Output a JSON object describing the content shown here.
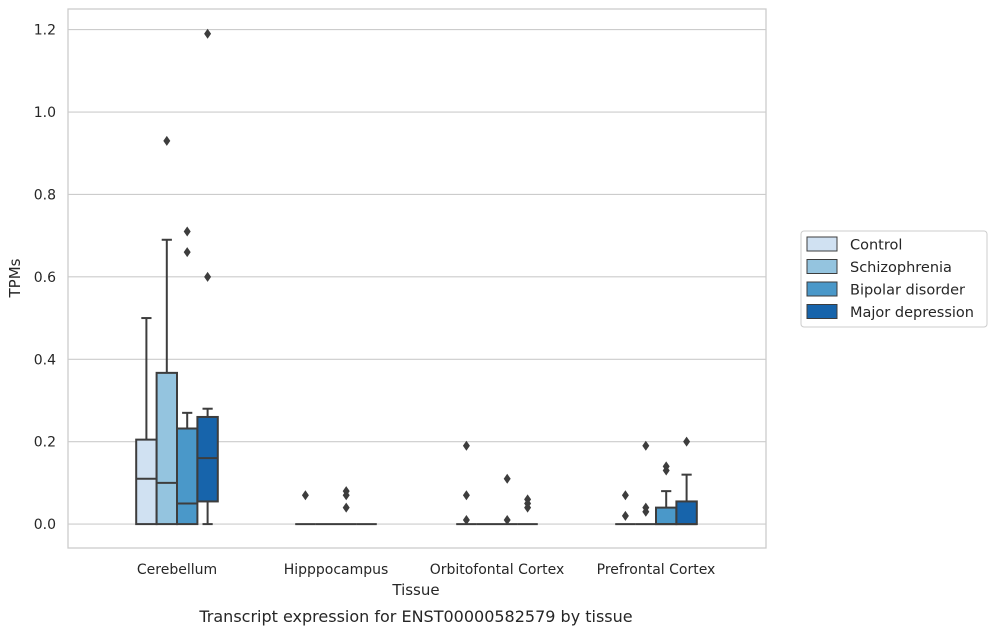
{
  "chart_data": {
    "type": "box",
    "caption": "Transcript expression for ENST00000582579 by tissue",
    "xlabel": "Tissue",
    "ylabel": "TPMs",
    "ylim": [
      -0.058,
      1.25
    ],
    "yticks": [
      0.0,
      0.2,
      0.4,
      0.6,
      0.8,
      1.0,
      1.2
    ],
    "ytick_labels": [
      "0.0",
      "0.2",
      "0.4",
      "0.6",
      "0.8",
      "1.0",
      "1.2"
    ],
    "grid": "horizontal",
    "legend_position": "right",
    "categories": [
      "Cerebellum",
      "Hipppocampus",
      "Orbitofontal Cortex",
      "Prefrontal Cortex"
    ],
    "series": [
      {
        "name": "Control",
        "color": "#d0e1f2",
        "boxes": [
          {
            "q1": 0.0,
            "median": 0.11,
            "q3": 0.205,
            "whislo": 0.0,
            "whishi": 0.5,
            "fliers": []
          },
          {
            "q1": 0.0,
            "median": 0.0,
            "q3": 0.0,
            "whislo": 0.0,
            "whishi": 0.0,
            "fliers": [
              0.07
            ]
          },
          {
            "q1": 0.0,
            "median": 0.0,
            "q3": 0.0,
            "whislo": 0.0,
            "whishi": 0.0,
            "fliers": [
              0.19,
              0.07,
              0.01
            ]
          },
          {
            "q1": 0.0,
            "median": 0.0,
            "q3": 0.0,
            "whislo": 0.0,
            "whishi": 0.0,
            "fliers": [
              0.07,
              0.02
            ]
          }
        ]
      },
      {
        "name": "Schizophrenia",
        "color": "#94c4df",
        "boxes": [
          {
            "q1": 0.0,
            "median": 0.1,
            "q3": 0.367,
            "whislo": 0.0,
            "whishi": 0.69,
            "fliers": [
              0.93
            ]
          },
          {
            "q1": 0.0,
            "median": 0.0,
            "q3": 0.0,
            "whislo": 0.0,
            "whishi": 0.0,
            "fliers": []
          },
          {
            "q1": 0.0,
            "median": 0.0,
            "q3": 0.0,
            "whislo": 0.0,
            "whishi": 0.0,
            "fliers": []
          },
          {
            "q1": 0.0,
            "median": 0.0,
            "q3": 0.0,
            "whislo": 0.0,
            "whishi": 0.0,
            "fliers": [
              0.19,
              0.04,
              0.03
            ]
          }
        ]
      },
      {
        "name": "Bipolar disorder",
        "color": "#4a98c9",
        "boxes": [
          {
            "q1": 0.0,
            "median": 0.05,
            "q3": 0.232,
            "whislo": 0.0,
            "whishi": 0.27,
            "fliers": [
              0.71,
              0.66
            ]
          },
          {
            "q1": 0.0,
            "median": 0.0,
            "q3": 0.0,
            "whislo": 0.0,
            "whishi": 0.0,
            "fliers": [
              0.08,
              0.07,
              0.04
            ]
          },
          {
            "q1": 0.0,
            "median": 0.0,
            "q3": 0.0,
            "whislo": 0.0,
            "whishi": 0.0,
            "fliers": [
              0.11,
              0.01
            ]
          },
          {
            "q1": 0.0,
            "median": 0.0,
            "q3": 0.04,
            "whislo": 0.0,
            "whishi": 0.08,
            "fliers": [
              0.14,
              0.13
            ]
          }
        ]
      },
      {
        "name": "Major depression",
        "color": "#1764ab",
        "boxes": [
          {
            "q1": 0.055,
            "median": 0.16,
            "q3": 0.26,
            "whislo": 0.0,
            "whishi": 0.28,
            "fliers": [
              1.19,
              0.6
            ]
          },
          {
            "q1": 0.0,
            "median": 0.0,
            "q3": 0.0,
            "whislo": 0.0,
            "whishi": 0.0,
            "fliers": []
          },
          {
            "q1": 0.0,
            "median": 0.0,
            "q3": 0.0,
            "whislo": 0.0,
            "whishi": 0.0,
            "fliers": [
              0.06,
              0.05,
              0.04
            ]
          },
          {
            "q1": 0.0,
            "median": 0.0,
            "q3": 0.055,
            "whislo": 0.0,
            "whishi": 0.12,
            "fliers": [
              0.2
            ]
          }
        ]
      }
    ]
  }
}
